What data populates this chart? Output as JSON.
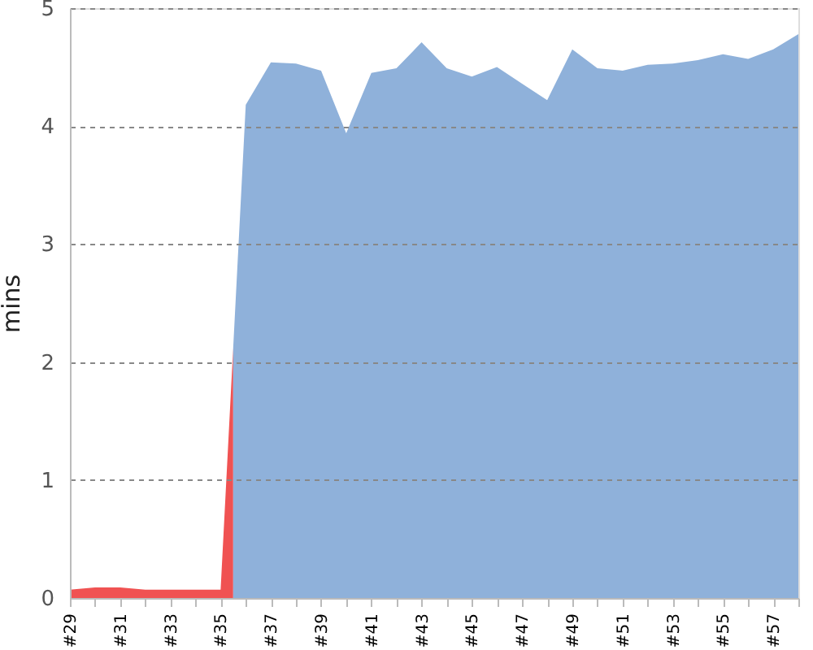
{
  "chart_data": {
    "type": "area",
    "ylabel": "mins",
    "xlim": [
      29,
      58
    ],
    "xticks": [
      {
        "value": 29,
        "label": "#29"
      },
      {
        "value": 30,
        "label": null
      },
      {
        "value": 31,
        "label": "#31"
      },
      {
        "value": 32,
        "label": null
      },
      {
        "value": 33,
        "label": "#33"
      },
      {
        "value": 34,
        "label": null
      },
      {
        "value": 35,
        "label": "#35"
      },
      {
        "value": 36,
        "label": null
      },
      {
        "value": 37,
        "label": "#37"
      },
      {
        "value": 38,
        "label": null
      },
      {
        "value": 39,
        "label": "#39"
      },
      {
        "value": 40,
        "label": null
      },
      {
        "value": 41,
        "label": "#41"
      },
      {
        "value": 42,
        "label": null
      },
      {
        "value": 43,
        "label": "#43"
      },
      {
        "value": 44,
        "label": null
      },
      {
        "value": 45,
        "label": "#45"
      },
      {
        "value": 46,
        "label": null
      },
      {
        "value": 47,
        "label": "#47"
      },
      {
        "value": 48,
        "label": null
      },
      {
        "value": 49,
        "label": "#49"
      },
      {
        "value": 50,
        "label": null
      },
      {
        "value": 51,
        "label": "#51"
      },
      {
        "value": 52,
        "label": null
      },
      {
        "value": 53,
        "label": "#53"
      },
      {
        "value": 54,
        "label": null
      },
      {
        "value": 55,
        "label": "#55"
      },
      {
        "value": 56,
        "label": null
      },
      {
        "value": 57,
        "label": "#57"
      },
      {
        "value": 58,
        "label": null
      }
    ],
    "ylim": [
      0,
      5
    ],
    "yticks": [
      0,
      1,
      2,
      3,
      4,
      5
    ],
    "grid": "y",
    "series": [
      {
        "color": "#f05252",
        "x": [
          29,
          30,
          31,
          32,
          33,
          34,
          35,
          35.5
        ],
        "values": [
          0.07,
          0.09,
          0.09,
          0.07,
          0.07,
          0.07,
          0.07,
          2.12
        ]
      },
      {
        "color": "#8fb1da",
        "x": [
          35.5,
          36,
          37,
          38,
          39,
          40,
          41,
          42,
          43,
          44,
          45,
          46,
          47,
          48,
          49,
          50,
          51,
          52,
          53,
          54,
          55,
          56,
          57,
          58
        ],
        "values": [
          2.12,
          4.18,
          4.54,
          4.53,
          4.47,
          3.94,
          4.45,
          4.49,
          4.71,
          4.49,
          4.42,
          4.5,
          4.36,
          4.22,
          4.65,
          4.49,
          4.47,
          4.52,
          4.53,
          4.56,
          4.61,
          4.57,
          4.65,
          4.78
        ]
      }
    ]
  }
}
